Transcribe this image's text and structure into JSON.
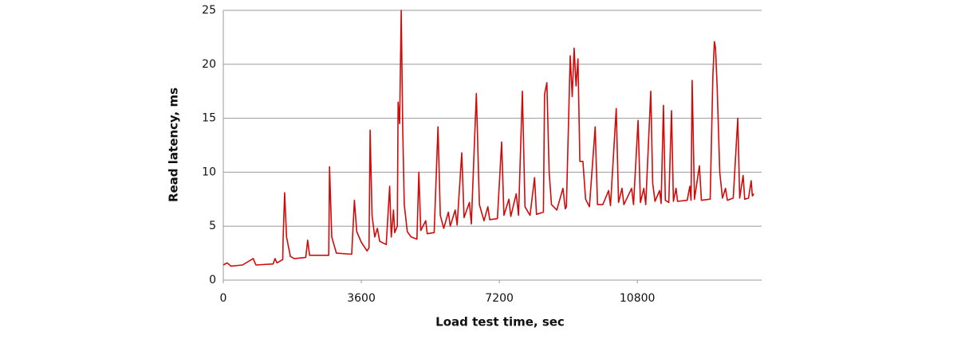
{
  "chart_data": {
    "type": "line",
    "x_label": "Load test time, sec",
    "y_label": "Read latency, ms",
    "xlim": [
      0,
      14000
    ],
    "xticks": [
      0,
      3600,
      7200,
      10800
    ],
    "ylim": [
      0,
      25
    ],
    "yticks": [
      0,
      5,
      10,
      15,
      20,
      25
    ],
    "grid": true,
    "x": [
      0,
      100,
      200,
      500,
      780,
      850,
      1300,
      1350,
      1400,
      1550,
      1560,
      1600,
      1650,
      1750,
      1850,
      2150,
      2200,
      2250,
      2750,
      2770,
      2830,
      2950,
      3350,
      3420,
      3480,
      3600,
      3750,
      3800,
      3830,
      3880,
      3950,
      4020,
      4080,
      4250,
      4340,
      4380,
      4440,
      4470,
      4540,
      4560,
      4600,
      4640,
      4680,
      4720,
      4800,
      4900,
      5050,
      5100,
      5150,
      5280,
      5320,
      5500,
      5600,
      5660,
      5750,
      5870,
      5920,
      6050,
      6100,
      6220,
      6280,
      6420,
      6470,
      6600,
      6680,
      6800,
      6900,
      6950,
      7150,
      7260,
      7320,
      7450,
      7500,
      7640,
      7700,
      7800,
      7870,
      8000,
      8120,
      8170,
      8350,
      8380,
      8440,
      8500,
      8560,
      8700,
      8860,
      8920,
      8950,
      9050,
      9100,
      9150,
      9200,
      9250,
      9300,
      9380,
      9450,
      9550,
      9700,
      9760,
      9900,
      10050,
      10100,
      10250,
      10310,
      10400,
      10450,
      10650,
      10700,
      10820,
      10880,
      10970,
      11020,
      11150,
      11200,
      11260,
      11380,
      11420,
      11480,
      11530,
      11620,
      11690,
      11740,
      11810,
      11850,
      12100,
      12170,
      12200,
      12230,
      12290,
      12420,
      12470,
      12700,
      12770,
      12810,
      12840,
      12880,
      12950,
      13020,
      13100,
      13150,
      13300,
      13420,
      13470,
      13560,
      13600,
      13700,
      13770,
      13800,
      13840
    ],
    "series": [
      {
        "name": "Read latency",
        "color": "#d10a0a",
        "values": [
          1.4,
          1.6,
          1.3,
          1.4,
          2.0,
          1.4,
          1.5,
          2.0,
          1.6,
          1.9,
          3.8,
          8.1,
          4.0,
          2.2,
          2.0,
          2.1,
          3.7,
          2.3,
          2.3,
          10.5,
          4.0,
          2.5,
          2.4,
          7.4,
          4.5,
          3.5,
          2.7,
          3.0,
          13.9,
          6.0,
          4.0,
          4.8,
          3.6,
          3.3,
          8.7,
          4.0,
          6.5,
          4.4,
          5.0,
          16.5,
          14.5,
          25,
          14,
          7.0,
          4.5,
          4.0,
          3.8,
          10.0,
          4.6,
          5.5,
          4.3,
          4.4,
          14.2,
          6.0,
          4.8,
          6.3,
          5.0,
          6.5,
          5.1,
          11.8,
          5.8,
          7.2,
          5.2,
          17.3,
          7.0,
          5.5,
          6.8,
          5.6,
          5.7,
          12.8,
          6.0,
          7.5,
          5.9,
          8.0,
          6.0,
          17.5,
          6.8,
          6.0,
          9.5,
          6.1,
          6.3,
          17.2,
          18.3,
          10,
          7.0,
          6.5,
          8.5,
          6.6,
          6.8,
          20.8,
          17,
          21.5,
          18,
          20.5,
          11,
          11.0,
          7.5,
          6.8,
          14.2,
          7.0,
          7.0,
          8.3,
          6.9,
          15.9,
          7.2,
          8.5,
          7.0,
          8.5,
          7.0,
          14.8,
          7.2,
          8.5,
          7.0,
          17.5,
          9.0,
          7.3,
          8.3,
          7.1,
          16.2,
          7.4,
          7.2,
          15.7,
          7.3,
          8.5,
          7.3,
          7.4,
          8.7,
          7.4,
          18.5,
          7.5,
          10.6,
          7.4,
          7.5,
          19,
          22.1,
          21.5,
          18,
          10,
          7.6,
          8.5,
          7.4,
          7.6,
          15.0,
          7.6,
          9.7,
          7.5,
          7.6,
          9.2,
          7.8,
          8.0
        ]
      }
    ]
  }
}
